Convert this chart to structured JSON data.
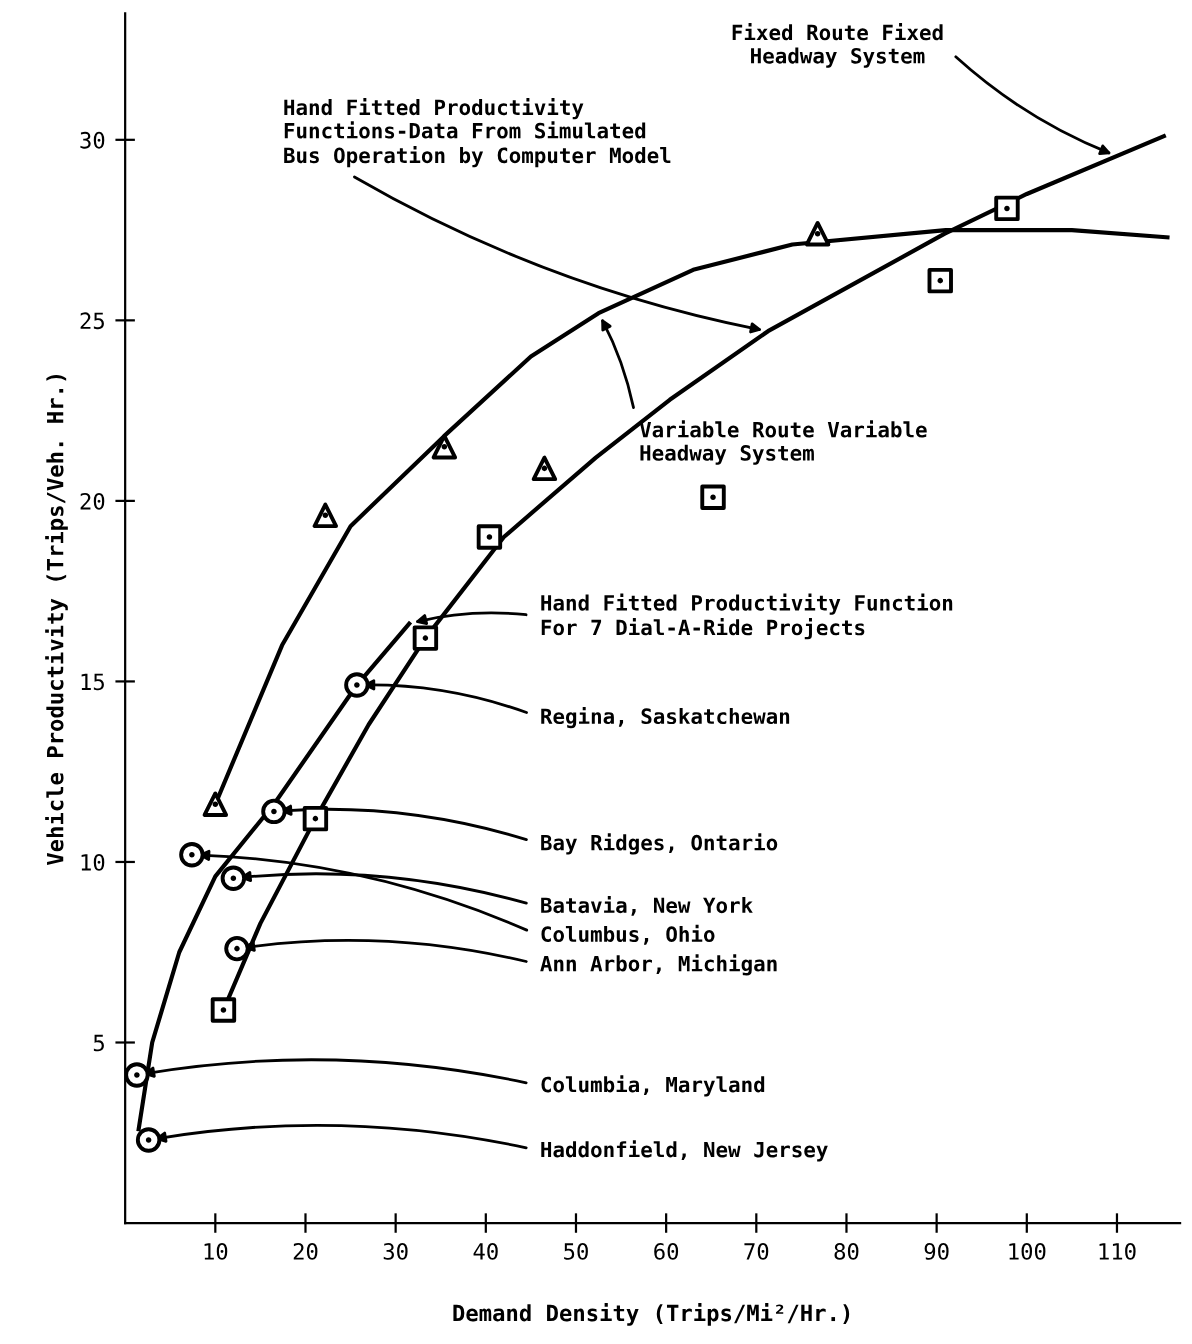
{
  "chart_data": {
    "type": "scatter",
    "xlabel": "Demand Density (Trips/Mi²/Hr.)",
    "ylabel": "Vehicle Productivity (Trips/Veh. Hr.)",
    "xlim": [
      0,
      117
    ],
    "ylim": [
      0,
      33.5
    ],
    "xticks": [
      10,
      20,
      30,
      40,
      50,
      60,
      70,
      80,
      90,
      100,
      110
    ],
    "yticks": [
      5,
      10,
      15,
      20,
      25,
      30
    ],
    "grid": false,
    "series": [
      {
        "type": "line",
        "color": "#000000",
        "marker": "none",
        "line_style": "solid",
        "x": [
          10,
          17.4,
          25,
          35.4,
          45,
          52.5,
          63,
          74,
          91,
          105,
          115.6
        ],
        "values": [
          11.6,
          16.0,
          19.3,
          21.8,
          24.0,
          25.2,
          26.4,
          27.1,
          27.5,
          27.5,
          27.3
        ]
      },
      {
        "type": "line",
        "color": "#000000",
        "marker": "none",
        "line_style": "solid",
        "x": [
          10.9,
          15,
          21.1,
          27,
          33.3,
          42,
          52.2,
          60.4,
          71.3,
          80,
          90.9,
          100,
          115.2
        ],
        "values": [
          5.9,
          8.3,
          11.2,
          13.8,
          16.2,
          19.0,
          21.2,
          22.8,
          24.7,
          25.9,
          27.4,
          28.5,
          30.1
        ]
      },
      {
        "type": "line",
        "color": "#000000",
        "marker": "none",
        "line_style": "solid",
        "x": [
          1.5,
          3,
          6,
          10,
          16.5,
          25.7,
          31.5
        ],
        "values": [
          2.6,
          5.0,
          7.5,
          9.6,
          11.6,
          14.9,
          16.6
        ]
      },
      {
        "color": "#000000",
        "marker": "triangle",
        "x": [
          10,
          22.2,
          35.4,
          46.5,
          76.8
        ],
        "values": [
          11.6,
          19.6,
          21.5,
          20.9,
          27.4
        ]
      },
      {
        "color": "#000000",
        "marker": "square",
        "x": [
          10.9,
          21.1,
          33.3,
          40.4,
          65.2,
          90.4,
          97.8
        ],
        "values": [
          5.9,
          11.2,
          16.2,
          19.0,
          20.1,
          26.1,
          28.1
        ]
      },
      {
        "color": "#000000",
        "marker": "circle",
        "x": [
          25.7,
          16.5,
          12.0,
          7.4,
          12.4,
          1.3,
          2.6
        ],
        "values": [
          14.9,
          11.4,
          9.55,
          10.2,
          7.6,
          4.1,
          2.3
        ]
      }
    ],
    "annotations": [
      {
        "text": "Fixed Route Fixed\nHeadway System",
        "x": 110,
        "y": 29.55
      },
      {
        "text": "Hand Fitted Productivity\nFunctions-Data From Simulated\nBus Operation by Computer Model",
        "x": 71.3,
        "y": 24.7
      },
      {
        "text": "Variable Route Variable\nHeadway System",
        "x": 52.5,
        "y": 25.2
      },
      {
        "text": "Hand Fitted Productivity Function\nFor 7 Dial-A-Ride Projects",
        "x": 31.5,
        "y": 16.6
      },
      {
        "text": "Regina, Saskatchewan",
        "x": 25.7,
        "y": 14.9
      },
      {
        "text": "Bay Ridges, Ontario",
        "x": 16.5,
        "y": 11.4
      },
      {
        "text": "Batavia, New York",
        "x": 12.0,
        "y": 9.55
      },
      {
        "text": "Columbus, Ohio",
        "x": 7.4,
        "y": 10.2
      },
      {
        "text": "Ann Arbor, Michigan",
        "x": 12.4,
        "y": 7.6
      },
      {
        "text": "Columbia, Maryland",
        "x": 1.3,
        "y": 4.1
      },
      {
        "text": "Haddonfield, New Jersey",
        "x": 2.6,
        "y": 2.3
      }
    ]
  }
}
